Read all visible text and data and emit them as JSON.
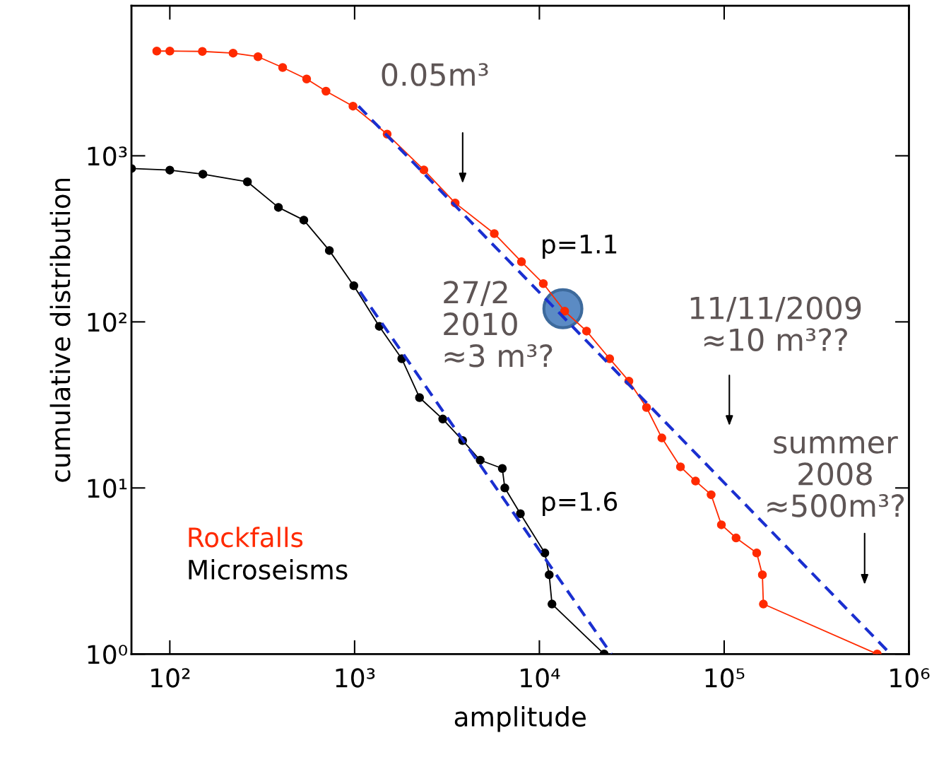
{
  "chart_data": {
    "type": "line",
    "xlabel": "amplitude",
    "ylabel": "cumulative distribution",
    "log": "xy",
    "xlim": [
      62,
      1000000
    ],
    "ylim": [
      1,
      8000
    ],
    "xticks": [
      {
        "value": 100,
        "label": "10²"
      },
      {
        "value": 1000,
        "label": "10³"
      },
      {
        "value": 10000,
        "label": "10⁴"
      },
      {
        "value": 100000,
        "label": "10⁵"
      },
      {
        "value": 1000000,
        "label": "10⁶"
      }
    ],
    "yticks": [
      {
        "value": 1,
        "label": "10⁰"
      },
      {
        "value": 10,
        "label": "10¹"
      },
      {
        "value": 100,
        "label": "10²"
      },
      {
        "value": 1000,
        "label": "10³"
      }
    ],
    "grid": false,
    "legend": "bottom left",
    "series": [
      {
        "name": "Rockfalls",
        "color": "#ff2a00",
        "marker": "circle",
        "line_style": "solid",
        "x": [
          85,
          100,
          150,
          220,
          300,
          408,
          550,
          700,
          980,
          1500,
          2370,
          3500,
          5700,
          8000,
          10500,
          13700,
          18000,
          24000,
          30500,
          38000,
          46000,
          58000,
          70000,
          85000,
          96600,
          116000,
          150000,
          161000,
          163000,
          673000
        ],
        "values": [
          4270,
          4270,
          4250,
          4150,
          3950,
          3400,
          2900,
          2450,
          1990,
          1350,
          822,
          520,
          340,
          230,
          170,
          116,
          88,
          60,
          44,
          30.5,
          20,
          13.4,
          11,
          9.1,
          6,
          5,
          4.06,
          3,
          2,
          1
        ]
      },
      {
        "name": "Microseisms",
        "color": "#000000",
        "marker": "circle",
        "line_style": "solid",
        "x": [
          62,
          100,
          151,
          263,
          387,
          531,
          730,
          990,
          1360,
          1800,
          2245,
          3000,
          3840,
          4780,
          6300,
          6500,
          7890,
          10700,
          11300,
          11700,
          22400
        ],
        "values": [
          838,
          820,
          775,
          697,
          489,
          410,
          269,
          165,
          94,
          60,
          35,
          26,
          19.3,
          14.7,
          13.1,
          10,
          7.0,
          4.06,
          3,
          2,
          1
        ]
      },
      {
        "type": "line",
        "color": "#1a2fd0",
        "marker": "none",
        "line_style": "dashed",
        "x": [
          1050,
          795000
        ],
        "values": [
          1990,
          1
        ]
      },
      {
        "type": "line",
        "color": "#1a2fd0",
        "marker": "none",
        "line_style": "dashed",
        "x": [
          1070,
          24500
        ],
        "values": [
          152,
          1
        ]
      },
      {
        "type": "scatter",
        "color": "#5b8bc4",
        "marker": "circle",
        "x": [
          13400
        ],
        "values": [
          120
        ]
      }
    ],
    "annotations": [
      "0.05m³",
      "11/11/2009\n≈10 m³??",
      "summer\n2008\n≈500m³?",
      "p=1.1",
      "p=1.6",
      "27/2\n2010\n≈3 m³?"
    ]
  }
}
